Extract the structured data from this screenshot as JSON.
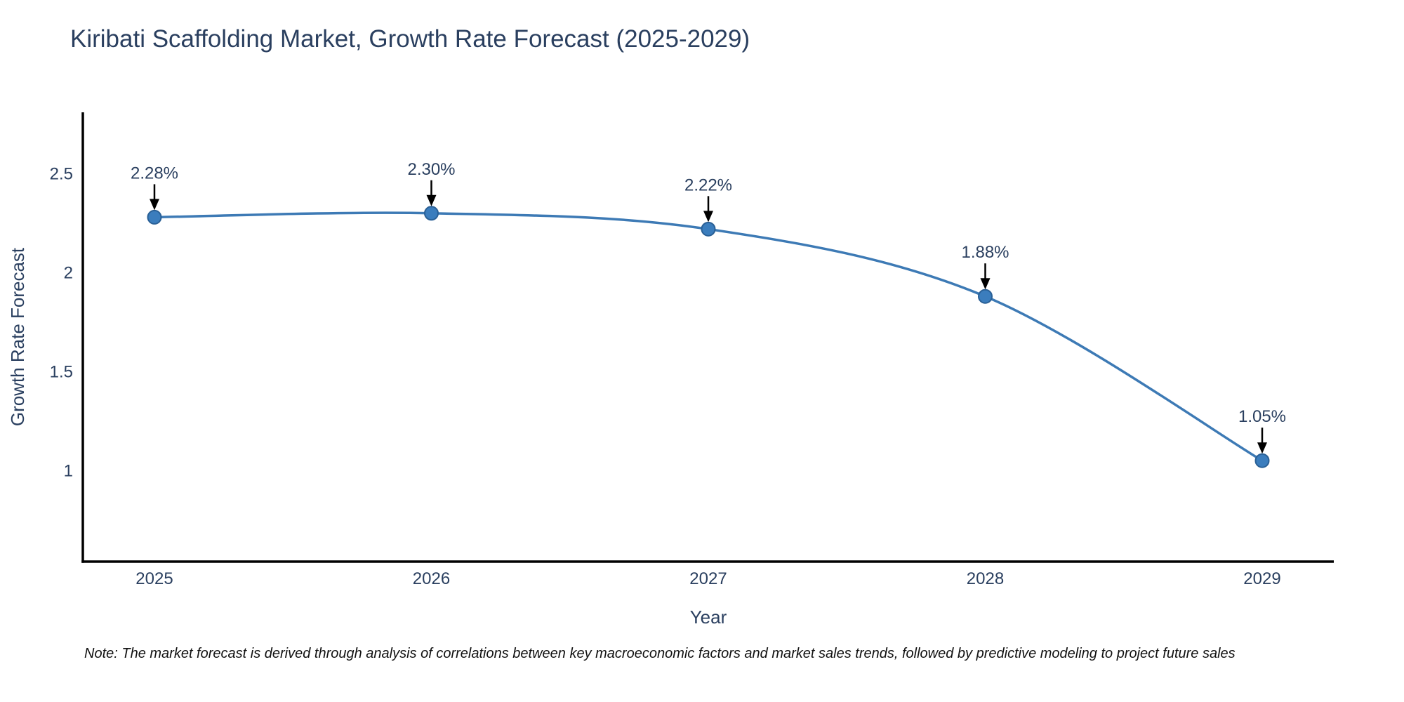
{
  "title": "Kiribati Scaffolding Market, Growth Rate Forecast (2025-2029)",
  "note": "Note: The market forecast is derived through analysis of correlations between key macroeconomic factors and market sales trends, followed by predictive modeling to project future sales",
  "chart_data": {
    "type": "line",
    "categories": [
      "2025",
      "2026",
      "2027",
      "2028",
      "2029"
    ],
    "series": [
      {
        "name": "Growth Rate Forecast",
        "values": [
          2.28,
          2.3,
          2.22,
          1.88,
          1.05
        ]
      }
    ],
    "point_labels": [
      "2.28%",
      "2.30%",
      "2.22%",
      "1.88%",
      "1.05%"
    ],
    "title": "Kiribati Scaffolding Market, Growth Rate Forecast (2025-2029)",
    "xlabel": "Year",
    "ylabel": "Growth Rate Forecast",
    "yticks": [
      1,
      1.5,
      2,
      2.5
    ],
    "ytick_labels": [
      "1",
      "1.5",
      "2",
      "2.5"
    ],
    "ylim": [
      0.54,
      2.81
    ],
    "grid": false,
    "legend_position": "none",
    "line_shape": "spline",
    "colors": {
      "line": "#3d7ab5",
      "marker_fill": "#3b7dbd",
      "marker_stroke": "#2a6096",
      "axis_line": "#000000",
      "chart_text": "#2a3f5f",
      "annotation_text": "#2a3f5f",
      "annotation_arrow": "#000000",
      "note_text": "#111111",
      "background": "#ffffff"
    }
  }
}
